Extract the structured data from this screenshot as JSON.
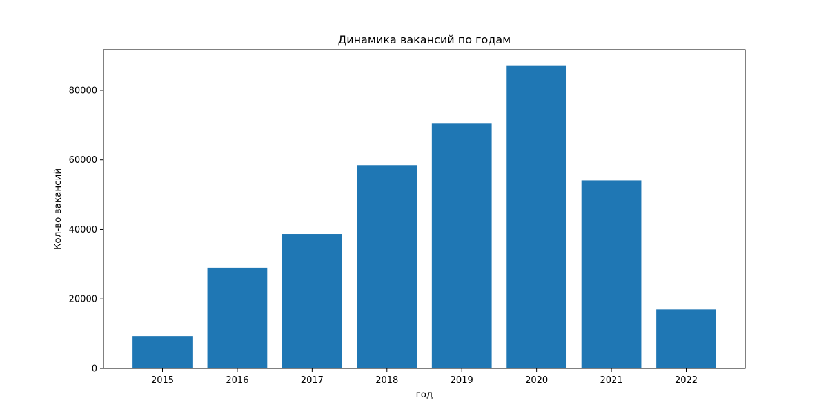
{
  "chart_data": {
    "type": "bar",
    "title": "Динамика вакансий по годам",
    "xlabel": "год",
    "ylabel": "Кол-во вакансий",
    "categories": [
      "2015",
      "2016",
      "2017",
      "2018",
      "2019",
      "2020",
      "2021",
      "2022"
    ],
    "values": [
      9300,
      29000,
      38700,
      58500,
      70600,
      87200,
      54100,
      17000
    ],
    "ylim": [
      0,
      91700
    ],
    "yticks": [
      0,
      20000,
      40000,
      60000,
      80000
    ],
    "ytick_labels": [
      "0",
      "20000",
      "40000",
      "60000",
      "80000"
    ],
    "bar_color": "#1f77b4",
    "grid": false
  }
}
